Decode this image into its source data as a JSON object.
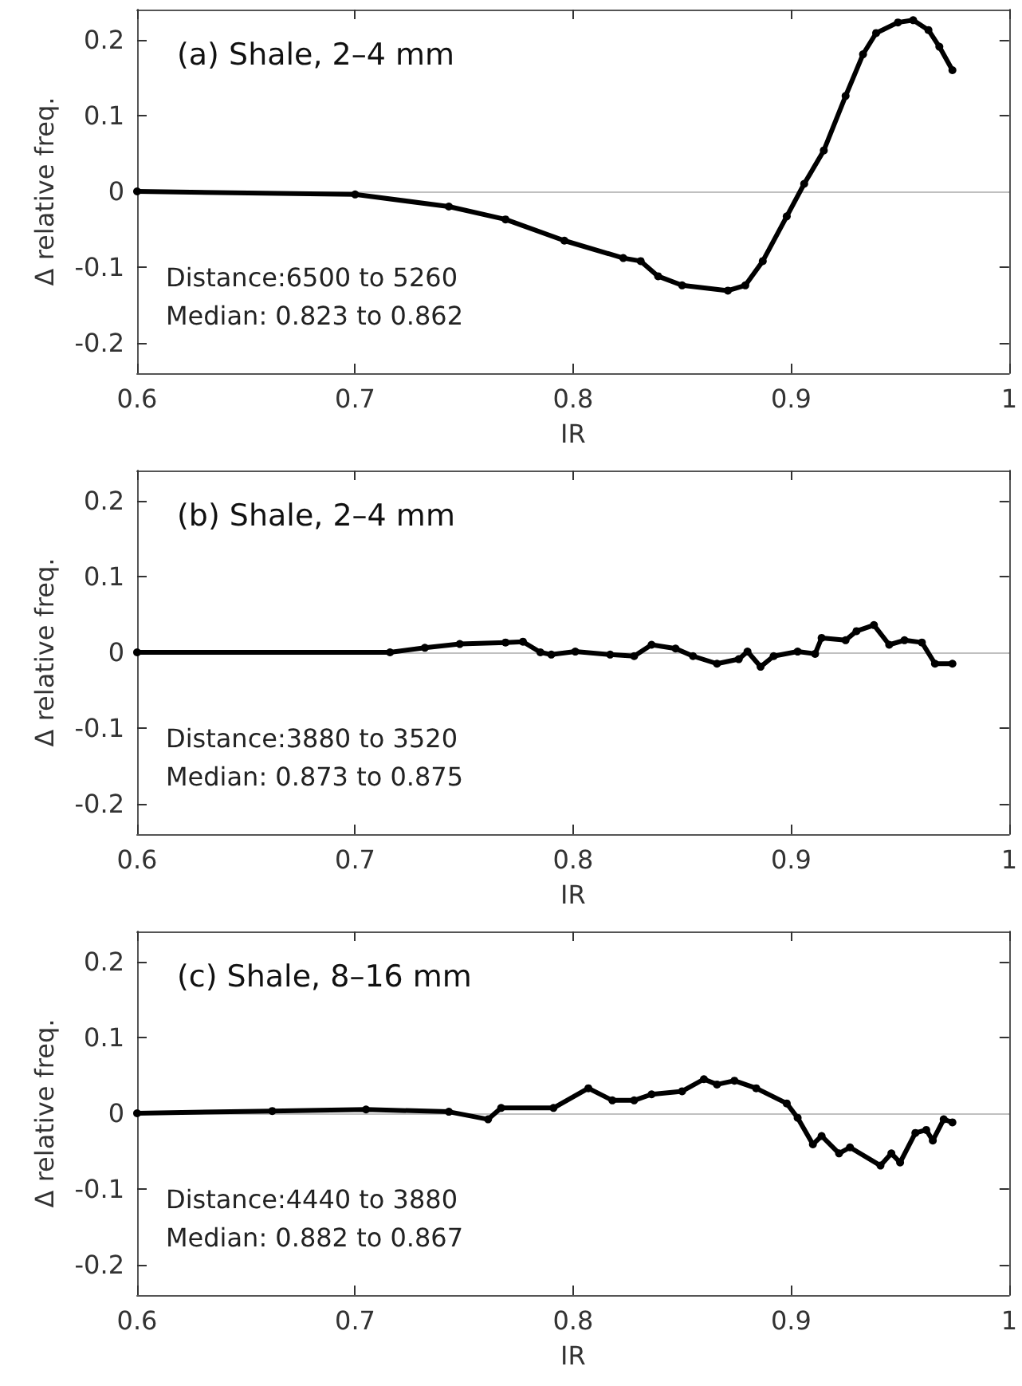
{
  "chart_data": [
    {
      "type": "line",
      "title": "(a) Shale, 2–4 mm",
      "xlabel": "IR",
      "ylabel": "Δ relative freq.",
      "marker": "circle",
      "annotations": [
        "Distance:6500 to 5260",
        "Median: 0.823 to 0.862"
      ],
      "xlim": [
        0.6,
        1
      ],
      "xticks": [
        0.6,
        0.7,
        0.8,
        0.9,
        1
      ],
      "ylim": [
        -0.24,
        0.24
      ],
      "yticks": [
        -0.2,
        -0.1,
        0,
        0.1,
        0.2
      ],
      "ref_lines": [
        {
          "axis": "y",
          "value": 0,
          "color": "#c0c0c0"
        }
      ],
      "series": [
        {
          "color": "#000000",
          "x": [
            0.6,
            0.7,
            0.743,
            0.769,
            0.796,
            0.823,
            0.831,
            0.839,
            0.85,
            0.871,
            0.879,
            0.887,
            0.898,
            0.906,
            0.915,
            0.925,
            0.933,
            0.939,
            0.949,
            0.956,
            0.963,
            0.968,
            0.974
          ],
          "values": [
            0,
            -0.004,
            -0.02,
            -0.037,
            -0.065,
            -0.088,
            -0.092,
            -0.112,
            -0.124,
            -0.131,
            -0.124,
            -0.092,
            -0.033,
            0.01,
            0.054,
            0.126,
            0.181,
            0.209,
            0.223,
            0.226,
            0.213,
            0.191,
            0.16
          ]
        }
      ]
    },
    {
      "type": "line",
      "title": "(b) Shale, 2–4 mm",
      "xlabel": "IR",
      "ylabel": "Δ relative freq.",
      "marker": "circle",
      "annotations": [
        "Distance:3880 to 3520",
        "Median: 0.873 to 0.875"
      ],
      "xlim": [
        0.6,
        1
      ],
      "xticks": [
        0.6,
        0.7,
        0.8,
        0.9,
        1
      ],
      "ylim": [
        -0.24,
        0.24
      ],
      "yticks": [
        -0.2,
        -0.1,
        0,
        0.1,
        0.2
      ],
      "ref_lines": [
        {
          "axis": "y",
          "value": 0,
          "color": "#c0c0c0"
        }
      ],
      "series": [
        {
          "color": "#000000",
          "x": [
            0.6,
            0.716,
            0.732,
            0.748,
            0.769,
            0.777,
            0.785,
            0.79,
            0.801,
            0.817,
            0.828,
            0.836,
            0.847,
            0.855,
            0.866,
            0.876,
            0.88,
            0.886,
            0.892,
            0.903,
            0.911,
            0.914,
            0.925,
            0.93,
            0.938,
            0.945,
            0.952,
            0.96,
            0.966,
            0.974
          ],
          "values": [
            0,
            0,
            0.006,
            0.011,
            0.013,
            0.014,
            0,
            -0.003,
            0.001,
            -0.003,
            -0.005,
            0.01,
            0.005,
            -0.005,
            -0.015,
            -0.009,
            0.001,
            -0.019,
            -0.005,
            0.001,
            -0.002,
            0.019,
            0.016,
            0.028,
            0.036,
            0.01,
            0.016,
            0.013,
            -0.015,
            -0.015
          ]
        }
      ]
    },
    {
      "type": "line",
      "title": "(c) Shale, 8–16 mm",
      "xlabel": "IR",
      "ylabel": "Δ relative freq.",
      "marker": "circle",
      "annotations": [
        "Distance:4440 to 3880",
        "Median: 0.882 to 0.867"
      ],
      "xlim": [
        0.6,
        1
      ],
      "xticks": [
        0.6,
        0.7,
        0.8,
        0.9,
        1
      ],
      "ylim": [
        -0.24,
        0.24
      ],
      "yticks": [
        -0.2,
        -0.1,
        0,
        0.1,
        0.2
      ],
      "ref_lines": [
        {
          "axis": "y",
          "value": 0,
          "color": "#c0c0c0"
        }
      ],
      "series": [
        {
          "color": "#000000",
          "x": [
            0.6,
            0.662,
            0.705,
            0.743,
            0.761,
            0.767,
            0.791,
            0.807,
            0.818,
            0.828,
            0.836,
            0.85,
            0.86,
            0.866,
            0.874,
            0.884,
            0.898,
            0.903,
            0.91,
            0.914,
            0.922,
            0.927,
            0.941,
            0.946,
            0.95,
            0.957,
            0.962,
            0.965,
            0.97,
            0.974
          ],
          "values": [
            0,
            0.003,
            0.005,
            0.002,
            -0.008,
            0.007,
            0.007,
            0.033,
            0.017,
            0.017,
            0.025,
            0.029,
            0.045,
            0.038,
            0.043,
            0.033,
            0.013,
            -0.006,
            -0.041,
            -0.03,
            -0.053,
            -0.045,
            -0.069,
            -0.053,
            -0.065,
            -0.026,
            -0.022,
            -0.036,
            -0.008,
            -0.012
          ]
        }
      ]
    }
  ]
}
